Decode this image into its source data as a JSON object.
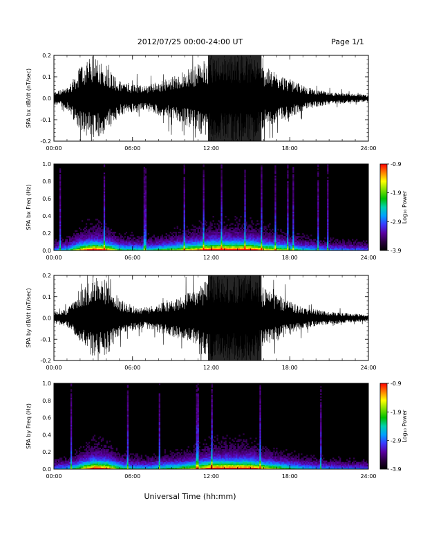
{
  "header": {
    "date_title": "2012/07/25  00:00-24:00 UT",
    "page_label": "Page 1/1"
  },
  "footer": {
    "xlabel": "Universal Time (hh:mm)"
  },
  "colorbar": {
    "label": "Log₁₀ Power",
    "ticks": [
      "-0.9",
      "-1.9",
      "-2.9",
      "-3.9"
    ],
    "range": [
      -3.9,
      -0.9
    ],
    "colors": [
      "#000000",
      "#2a0040",
      "#5a00a0",
      "#3a3aff",
      "#00a0ff",
      "#00d0b0",
      "#00c000",
      "#80e000",
      "#ffff00",
      "#ff8000",
      "#ff0000"
    ]
  },
  "chart_data": [
    {
      "type": "line",
      "ylabel": "SPA bx dB/dt (nT/sec)",
      "xlim": [
        "00:00",
        "24:00"
      ],
      "ylim": [
        -0.2,
        0.2
      ],
      "x_ticks": [
        "00:00",
        "06:00",
        "12:00",
        "18:00",
        "24:00"
      ],
      "y_ticks": [
        "0.2",
        "0.1",
        "0.0",
        "-0.1",
        "-0.2"
      ],
      "series": [
        {
          "x": [
            "00:00",
            "01:00",
            "02:00",
            "03:00",
            "04:00",
            "05:00",
            "06:00",
            "07:00",
            "08:00",
            "09:00",
            "10:00",
            "11:00",
            "12:00",
            "13:00",
            "14:00",
            "15:00",
            "16:00",
            "17:00",
            "18:00",
            "19:00",
            "20:00",
            "21:00",
            "22:00",
            "23:00",
            "24:00"
          ],
          "envelope": [
            0.03,
            0.05,
            0.15,
            0.2,
            0.16,
            0.08,
            0.07,
            0.06,
            0.08,
            0.1,
            0.13,
            0.16,
            0.2,
            0.2,
            0.2,
            0.2,
            0.15,
            0.12,
            0.09,
            0.06,
            0.04,
            0.03,
            0.025,
            0.02,
            0.015
          ]
        }
      ]
    },
    {
      "type": "heatmap",
      "ylabel": "SPA bx Freq (Hz)",
      "xlim": [
        "00:00",
        "24:00"
      ],
      "ylim": [
        0.0,
        1.0
      ],
      "x_ticks": [
        "00:00",
        "06:00",
        "12:00",
        "18:00",
        "24:00"
      ],
      "y_ticks": [
        "1.0",
        "0.8",
        "0.6",
        "0.4",
        "0.2",
        "0.0"
      ],
      "colorscale": "Log₁₀ Power",
      "zlim": [
        -3.9,
        -0.9
      ]
    },
    {
      "type": "line",
      "ylabel": "SPA by dB/dt (nT/sec)",
      "xlim": [
        "00:00",
        "24:00"
      ],
      "ylim": [
        -0.2,
        0.2
      ],
      "x_ticks": [
        "00:00",
        "06:00",
        "12:00",
        "18:00",
        "24:00"
      ],
      "y_ticks": [
        "0.2",
        "0.1",
        "0.0",
        "-0.1",
        "-0.2"
      ],
      "series": [
        {
          "x": [
            "00:00",
            "01:00",
            "02:00",
            "03:00",
            "04:00",
            "05:00",
            "06:00",
            "07:00",
            "08:00",
            "09:00",
            "10:00",
            "11:00",
            "12:00",
            "13:00",
            "14:00",
            "15:00",
            "16:00",
            "17:00",
            "18:00",
            "19:00",
            "20:00",
            "21:00",
            "22:00",
            "23:00",
            "24:00"
          ],
          "envelope": [
            0.03,
            0.04,
            0.12,
            0.2,
            0.18,
            0.09,
            0.06,
            0.05,
            0.07,
            0.09,
            0.11,
            0.14,
            0.2,
            0.2,
            0.2,
            0.2,
            0.14,
            0.11,
            0.08,
            0.05,
            0.04,
            0.03,
            0.025,
            0.02,
            0.015
          ]
        }
      ]
    },
    {
      "type": "heatmap",
      "ylabel": "SPA by Freq (Hz)",
      "xlim": [
        "00:00",
        "24:00"
      ],
      "ylim": [
        0.0,
        1.0
      ],
      "x_ticks": [
        "00:00",
        "06:00",
        "12:00",
        "18:00",
        "24:00"
      ],
      "y_ticks": [
        "1.0",
        "0.8",
        "0.6",
        "0.4",
        "0.2",
        "0.0"
      ],
      "colorscale": "Log₁₀ Power",
      "zlim": [
        -3.9,
        -0.9
      ]
    }
  ]
}
